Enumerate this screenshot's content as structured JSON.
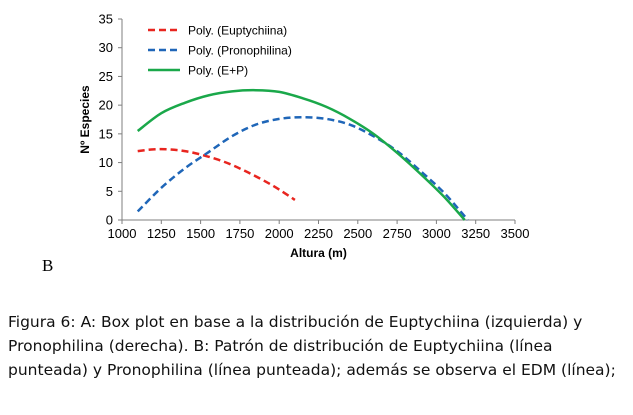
{
  "chart_data": {
    "type": "line",
    "title": "",
    "xlabel": "Altura (m)",
    "ylabel": "Nº Especies",
    "xlim": [
      1000,
      3500
    ],
    "ylim": [
      0,
      35
    ],
    "xticks": [
      1000,
      1250,
      1500,
      1750,
      2000,
      2250,
      2500,
      2750,
      3000,
      3250,
      3500
    ],
    "yticks": [
      0,
      5,
      10,
      15,
      20,
      25,
      30,
      35
    ],
    "grid": false,
    "legend_position": "top-left",
    "series": [
      {
        "name": "Poly. (Euptychiina)",
        "color": "#e8251f",
        "dash": "dashed",
        "x": [
          1100,
          1200,
          1300,
          1400,
          1500,
          1600,
          1700,
          1800,
          1900,
          2000,
          2100
        ],
        "y": [
          12.0,
          12.3,
          12.3,
          12.0,
          11.4,
          10.6,
          9.6,
          8.3,
          6.9,
          5.3,
          3.5
        ]
      },
      {
        "name": "Poly. (Pronophilina)",
        "color": "#1f66b8",
        "dash": "dashed",
        "x": [
          1100,
          1250,
          1400,
          1550,
          1700,
          1850,
          2000,
          2150,
          2300,
          2450,
          2600,
          2750,
          2900,
          3050,
          3200
        ],
        "y": [
          1.5,
          5.6,
          9.0,
          11.8,
          14.6,
          16.6,
          17.6,
          17.9,
          17.6,
          16.6,
          14.6,
          12.0,
          8.5,
          4.7,
          0.0
        ]
      },
      {
        "name": "Poly. (E+P)",
        "color": "#1aa84a",
        "dash": "solid",
        "x": [
          1100,
          1250,
          1400,
          1550,
          1700,
          1850,
          2000,
          2150,
          2300,
          2450,
          2600,
          2750,
          2900,
          3050,
          3180
        ],
        "y": [
          15.5,
          18.6,
          20.4,
          21.7,
          22.4,
          22.6,
          22.3,
          21.2,
          19.7,
          17.6,
          15.0,
          11.7,
          8.0,
          4.0,
          0.0
        ]
      }
    ]
  },
  "panel_label": "B",
  "caption": {
    "lead": "Figura 6",
    "text": ": A: Box plot en base a la distribución de Euptychiina (izquierda) y Pronophilina (derecha). B: Patrón de distribución de Euptychiina (línea punteada) y Pronophilina (línea punteada); además se observa el EDM (línea);"
  }
}
